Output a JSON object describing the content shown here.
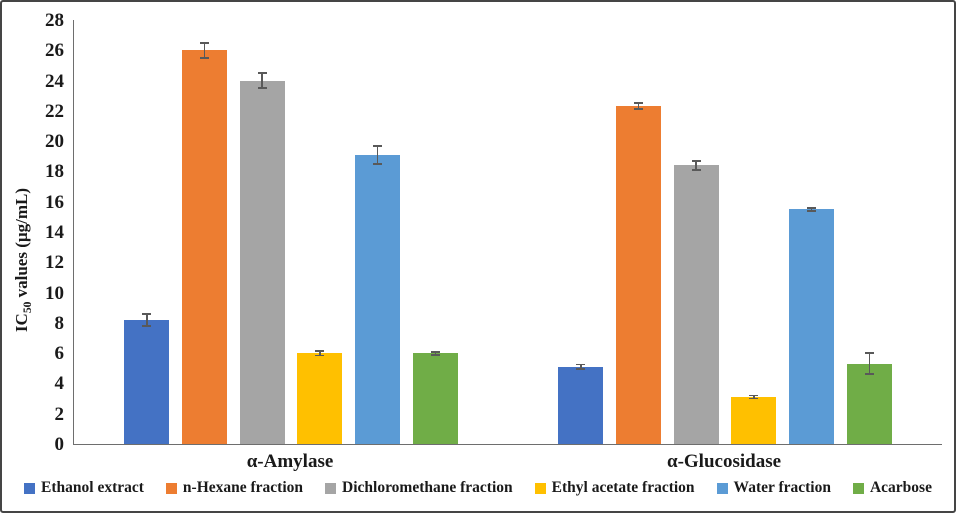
{
  "figure": {
    "ylabel": {
      "prefix": "IC",
      "sub": "50",
      "suffix": " values (µg/mL)"
    }
  },
  "chart_data": {
    "type": "bar",
    "title": "",
    "xlabel": "",
    "ylabel": "IC50 values (µg/mL)",
    "categories": [
      "α-Amylase",
      "α-Glucosidase"
    ],
    "series": [
      {
        "name": "Ethanol extract",
        "color": "#4472C4",
        "values": [
          8.2,
          5.1
        ],
        "errors": [
          0.4,
          0.15
        ]
      },
      {
        "name": "n-Hexane fraction",
        "color": "#ED7D31",
        "values": [
          26.0,
          22.3
        ],
        "errors": [
          0.5,
          0.2
        ]
      },
      {
        "name": "Dichloromethane fraction",
        "color": "#A5A5A5",
        "values": [
          24.0,
          18.4
        ],
        "errors": [
          0.5,
          0.3
        ]
      },
      {
        "name": "Ethyl acetate fraction",
        "color": "#FFC000",
        "values": [
          6.0,
          3.1
        ],
        "errors": [
          0.15,
          0.1
        ]
      },
      {
        "name": "Water fraction",
        "color": "#5B9BD5",
        "values": [
          19.1,
          15.5
        ],
        "errors": [
          0.6,
          0.1
        ]
      },
      {
        "name": "Acarbose",
        "color": "#70AD47",
        "values": [
          6.0,
          5.3
        ],
        "errors": [
          0.1,
          0.7
        ]
      }
    ],
    "ylim": [
      0,
      28
    ],
    "yticks": [
      0,
      2,
      4,
      6,
      8,
      10,
      12,
      14,
      16,
      18,
      20,
      22,
      24,
      26,
      28
    ],
    "grid": false,
    "legend_position": "bottom",
    "error_bars": true,
    "axis_color": "#6e6e6e",
    "error_bar_color": "#595959"
  }
}
